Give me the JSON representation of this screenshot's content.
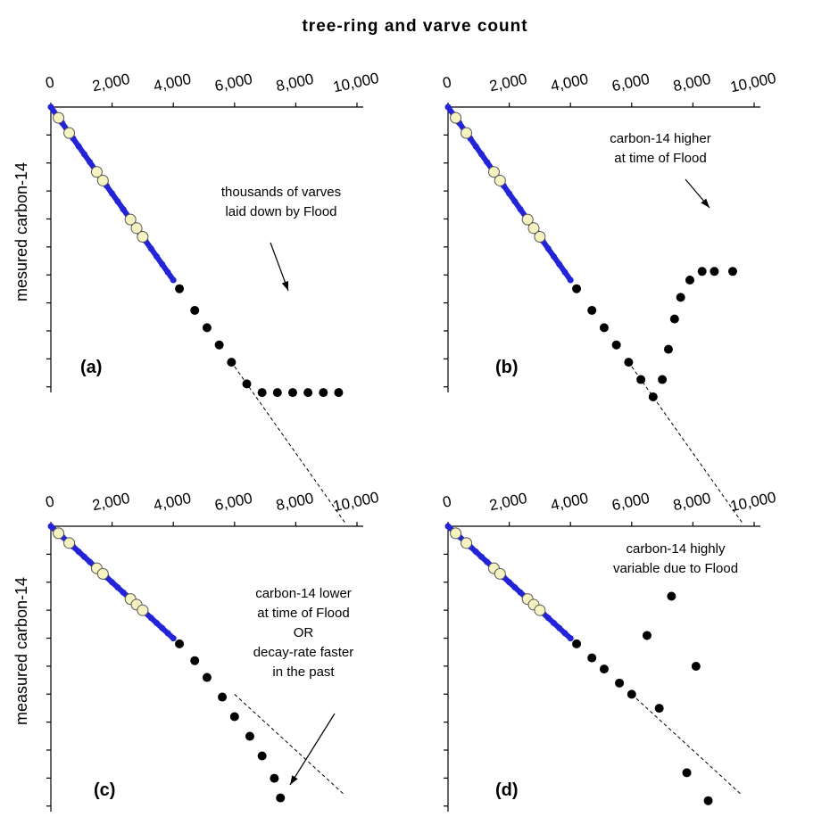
{
  "figure": {
    "title": "tree-ring  and  varve  count"
  },
  "colors": {
    "tree_ring": "#2323d8",
    "varve": "#f6f2c2",
    "varve_outline": "#555555",
    "flood": "#000000"
  },
  "chart_data": [
    {
      "type": "scatter",
      "panel_label": "(a)",
      "ylabel": "mesured carbon-14",
      "xlim": [
        0,
        10000
      ],
      "x_ticks": [
        "0",
        "2,000",
        "4,000",
        "6,000",
        "8,000",
        "10,000"
      ],
      "y_tick_count": 10,
      "annotation": [
        "thousands of varves",
        "laid down by Flood"
      ],
      "series": [
        {
          "name": "",
          "marker": "line",
          "x": [
            0,
            4000
          ],
          "y": [
            0,
            4000
          ]
        },
        {
          "name": "",
          "marker": "circle",
          "x": [
            250,
            600,
            1500,
            1700,
            2600,
            2800,
            3000
          ],
          "y": [
            250,
            600,
            1500,
            1700,
            2600,
            2800,
            3000
          ]
        },
        {
          "name": "",
          "marker": "dot",
          "x": [
            4200,
            4700,
            5100,
            5500,
            5900,
            6400,
            6900,
            7400,
            7900,
            8400,
            8900,
            9400
          ],
          "y": [
            4200,
            4700,
            5100,
            5500,
            5900,
            6400,
            6600,
            6600,
            6600,
            6600,
            6600,
            6600
          ]
        },
        {
          "name": "",
          "marker": "dashed",
          "x": [
            6000,
            9600
          ],
          "y": [
            6000,
            9600
          ]
        }
      ]
    },
    {
      "type": "scatter",
      "panel_label": "(b)",
      "ylabel": "",
      "xlim": [
        0,
        10000
      ],
      "x_ticks": [
        "0",
        "2,000",
        "4,000",
        "6,000",
        "8,000",
        "10,000"
      ],
      "y_tick_count": 10,
      "annotation": [
        "carbon-14 higher",
        "at  time of Flood"
      ],
      "series": [
        {
          "name": "",
          "marker": "line",
          "x": [
            0,
            4000
          ],
          "y": [
            0,
            4000
          ]
        },
        {
          "name": "",
          "marker": "circle",
          "x": [
            250,
            600,
            1500,
            1700,
            2600,
            2800,
            3000
          ],
          "y": [
            250,
            600,
            1500,
            1700,
            2600,
            2800,
            3000
          ]
        },
        {
          "name": "",
          "marker": "dot",
          "x": [
            4200,
            4700,
            5100,
            5500,
            5900,
            6300,
            6700,
            7000,
            7200,
            7400,
            7600,
            7900,
            8300,
            8700,
            9300
          ],
          "y": [
            4200,
            4700,
            5100,
            5500,
            5900,
            6300,
            6700,
            6300,
            5600,
            4900,
            4400,
            4000,
            3800,
            3800,
            3800
          ]
        },
        {
          "name": "",
          "marker": "dashed",
          "x": [
            6000,
            9600
          ],
          "y": [
            6000,
            9600
          ]
        }
      ]
    },
    {
      "type": "scatter",
      "panel_label": "(c)",
      "ylabel": "measured carbon-14",
      "xlim": [
        0,
        10000
      ],
      "x_ticks": [
        "0",
        "2,000",
        "4,000",
        "6,000",
        "8,000",
        "10,000"
      ],
      "y_tick_count": 10,
      "annotation": [
        "carbon-14 lower",
        "at time of  Flood",
        "OR",
        "decay-rate faster",
        "in the past"
      ],
      "series": [
        {
          "name": "",
          "marker": "line",
          "x": [
            0,
            4000
          ],
          "y": [
            0,
            4000
          ]
        },
        {
          "name": "",
          "marker": "circle",
          "x": [
            250,
            600,
            1500,
            1700,
            2600,
            2800,
            3000
          ],
          "y": [
            250,
            600,
            1500,
            1700,
            2600,
            2800,
            3000
          ]
        },
        {
          "name": "",
          "marker": "dot",
          "x": [
            4200,
            4700,
            5100,
            5600,
            6000,
            6500,
            6900,
            7300,
            7500
          ],
          "y": [
            4200,
            4800,
            5400,
            6100,
            6800,
            7500,
            8200,
            9000,
            9700
          ]
        },
        {
          "name": "",
          "marker": "dashed",
          "x": [
            6000,
            9600
          ],
          "y": [
            6000,
            9600
          ]
        }
      ]
    },
    {
      "type": "scatter",
      "panel_label": "(d)",
      "ylabel": "",
      "xlim": [
        0,
        10000
      ],
      "x_ticks": [
        "0",
        "2,000",
        "4,000",
        "6,000",
        "8,000",
        "10,000"
      ],
      "y_tick_count": 10,
      "annotation": [
        "carbon-14 highly",
        "variable due to Flood"
      ],
      "series": [
        {
          "name": "",
          "marker": "line",
          "x": [
            0,
            4000
          ],
          "y": [
            0,
            4000
          ]
        },
        {
          "name": "",
          "marker": "circle",
          "x": [
            250,
            600,
            1500,
            1700,
            2600,
            2800,
            3000
          ],
          "y": [
            250,
            600,
            1500,
            1700,
            2600,
            2800,
            3000
          ]
        },
        {
          "name": "",
          "marker": "dot",
          "x": [
            4200,
            4700,
            5100,
            5600,
            6000,
            6500,
            6900,
            7300,
            7800,
            8100,
            8500
          ],
          "y": [
            4200,
            4700,
            5100,
            5600,
            6000,
            3900,
            6500,
            2500,
            8800,
            5000,
            9800
          ]
        },
        {
          "name": "",
          "marker": "dashed",
          "x": [
            6000,
            9600
          ],
          "y": [
            6000,
            9600
          ]
        }
      ]
    }
  ]
}
